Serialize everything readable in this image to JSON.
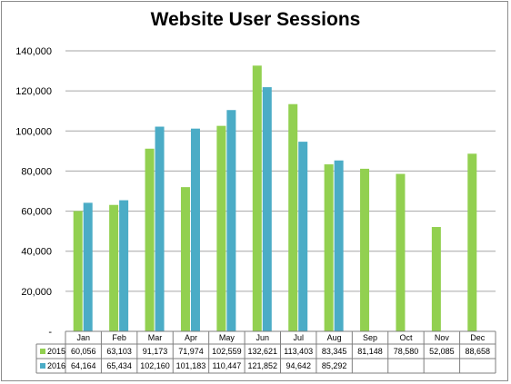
{
  "chart_data": {
    "type": "bar",
    "title": "Website User Sessions",
    "xlabel": "",
    "ylabel": "",
    "categories": [
      "Jan",
      "Feb",
      "Mar",
      "Apr",
      "May",
      "Jun",
      "Jul",
      "Aug",
      "Sep",
      "Oct",
      "Nov",
      "Dec"
    ],
    "series": [
      {
        "name": "2015",
        "color": "#92d050",
        "values": [
          60056,
          63103,
          91173,
          71974,
          102559,
          132621,
          113403,
          83345,
          81148,
          78580,
          52085,
          88658
        ],
        "labels": [
          "60,056",
          "63,103",
          "91,173",
          "71,974",
          "102,559",
          "132,621",
          "113,403",
          "83,345",
          "81,148",
          "78,580",
          "52,085",
          "88,658"
        ]
      },
      {
        "name": "2016",
        "color": "#4bacc6",
        "values": [
          64164,
          65434,
          102160,
          101183,
          110447,
          121852,
          94642,
          85292,
          null,
          null,
          null,
          null
        ],
        "labels": [
          "64,164",
          "65,434",
          "102,160",
          "101,183",
          "110,447",
          "121,852",
          "94,642",
          "85,292",
          "",
          "",
          "",
          ""
        ]
      }
    ],
    "ylim": [
      0,
      140000
    ],
    "yticks": [
      0,
      20000,
      40000,
      60000,
      80000,
      100000,
      120000,
      140000
    ],
    "ytick_labels": [
      "-",
      "20,000",
      "40,000",
      "60,000",
      "80,000",
      "100,000",
      "120,000",
      "140,000"
    ],
    "grid": true,
    "legend": "data-table-below",
    "data_table": true
  }
}
